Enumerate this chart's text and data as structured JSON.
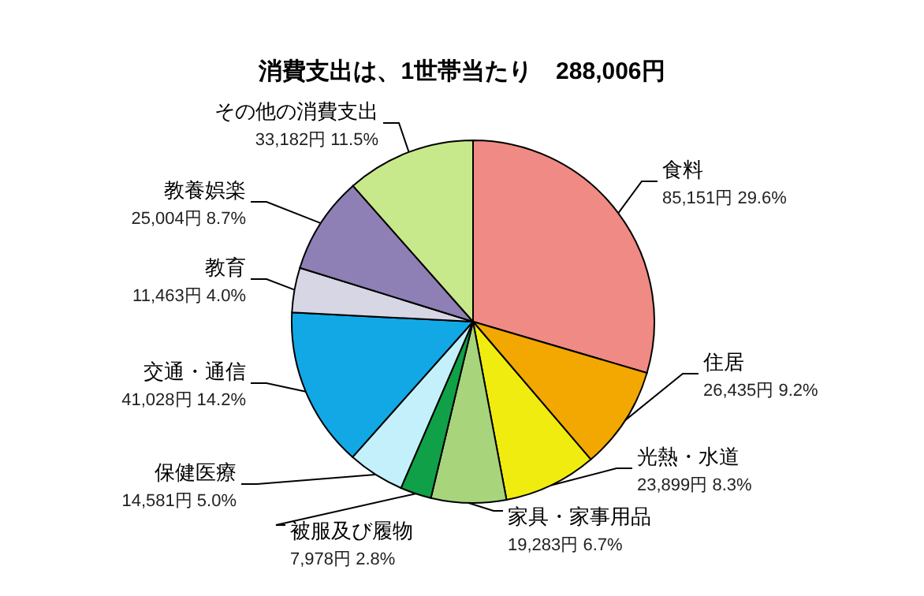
{
  "chart_data": {
    "type": "pie",
    "title": "消費支出は、1世帯当たり　288,006円",
    "categories": [
      "食料",
      "住居",
      "光熱・水道",
      "家具・家事用品",
      "被服及び履物",
      "保健医療",
      "交通・通信",
      "教育",
      "教養娯楽",
      "その他の消費支出"
    ],
    "values": [
      85151,
      26435,
      23899,
      19283,
      7978,
      14581,
      41028,
      11463,
      25004,
      33182
    ],
    "value_labels": [
      "85,151円 29.6%",
      "26,435円 9.2%",
      "23,899円 8.3%",
      "19,283円 6.7%",
      "7,978円 2.8%",
      "14,581円 5.0%",
      "41,028円 14.2%",
      "11,463円 4.0%",
      "25,004円 8.7%",
      "33,182円 11.5%"
    ],
    "colors": [
      "#f08a84",
      "#f2a800",
      "#f0ec10",
      "#a8d47c",
      "#10a048",
      "#c4f0fc",
      "#12a8e6",
      "#d6d6e4",
      "#8e80b4",
      "#c8e88c"
    ]
  }
}
